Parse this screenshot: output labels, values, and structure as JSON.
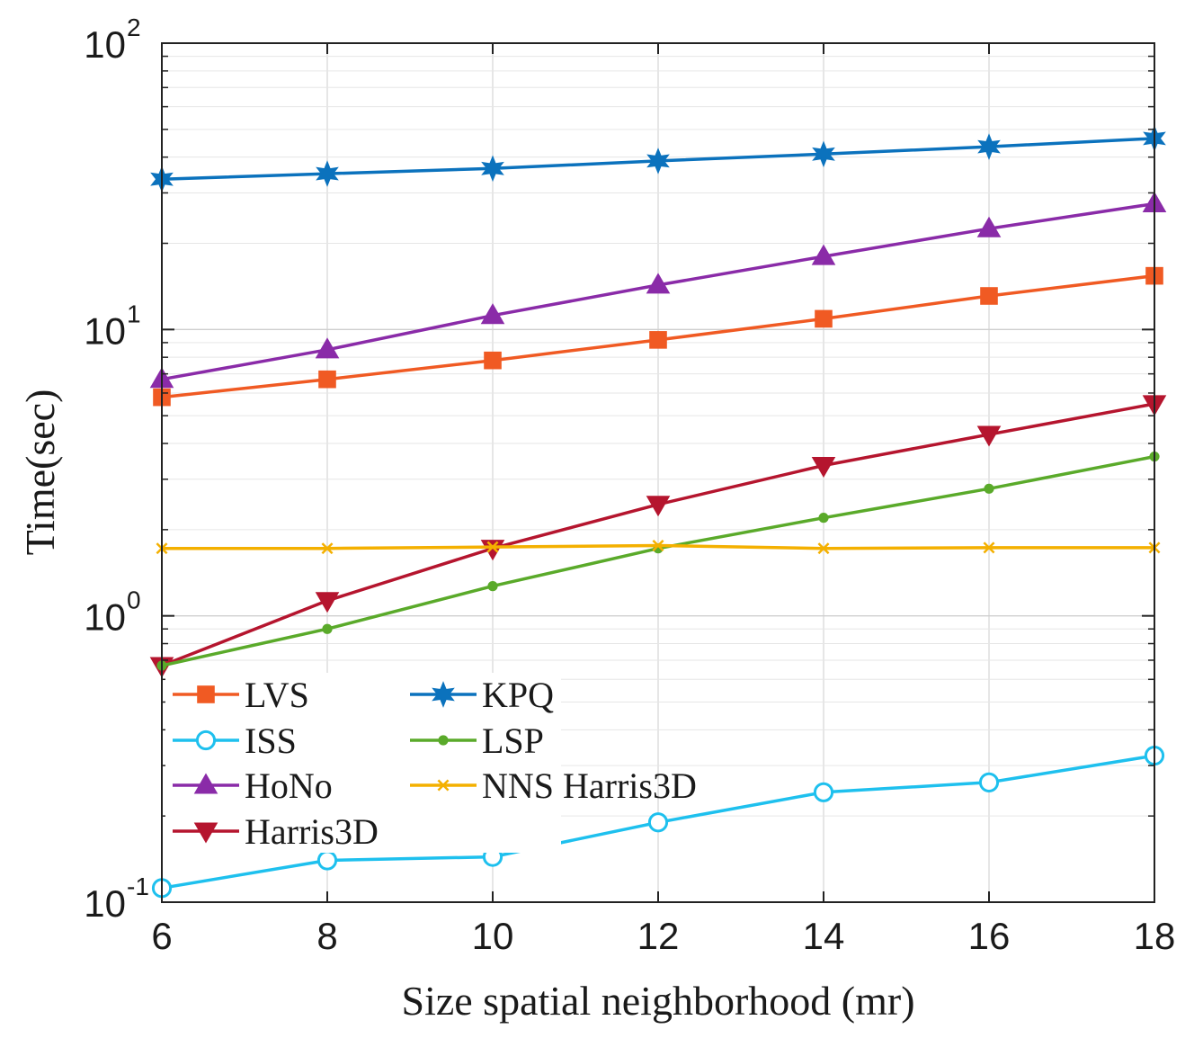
{
  "chart_data": {
    "type": "line",
    "xlabel": "Size spatial neighborhood (mr)",
    "ylabel": "Time(sec)",
    "yscale": "log",
    "xlim": [
      6,
      18
    ],
    "ylim": [
      0.1,
      100
    ],
    "grid": true,
    "legend_position": "bottom-left",
    "x_ticks": [
      "6",
      "8",
      "10",
      "12",
      "14",
      "16",
      "18"
    ],
    "y_ticks": [
      {
        "value": 0.1,
        "base": "10",
        "exp": "-1"
      },
      {
        "value": 1,
        "base": "10",
        "exp": "0"
      },
      {
        "value": 10,
        "base": "10",
        "exp": "1"
      },
      {
        "value": 100,
        "base": "10",
        "exp": "2"
      }
    ],
    "x": [
      6,
      8,
      10,
      12,
      14,
      16,
      18
    ],
    "series": [
      {
        "name": "LVS",
        "color": "#f05a23",
        "marker": "square",
        "values": [
          5.8,
          6.7,
          7.8,
          9.2,
          10.9,
          13.1,
          15.4
        ]
      },
      {
        "name": "ISS",
        "color": "#1ec0ee",
        "marker": "circle",
        "values": [
          0.112,
          0.14,
          0.144,
          0.19,
          0.242,
          0.262,
          0.325
        ]
      },
      {
        "name": "HoNo",
        "color": "#8a2ba8",
        "marker": "triangle-up",
        "values": [
          6.7,
          8.5,
          11.2,
          14.3,
          18.0,
          22.5,
          27.5
        ]
      },
      {
        "name": "Harris3D",
        "color": "#b5152e",
        "marker": "triangle-down",
        "values": [
          0.67,
          1.13,
          1.72,
          2.45,
          3.35,
          4.3,
          5.5
        ]
      },
      {
        "name": "KPQ",
        "color": "#0b72bd",
        "marker": "star",
        "values": [
          33.5,
          35.0,
          36.5,
          38.8,
          41.0,
          43.5,
          46.5
        ]
      },
      {
        "name": "LSP",
        "color": "#5aaa2a",
        "marker": "dot",
        "values": [
          0.67,
          0.9,
          1.27,
          1.72,
          2.2,
          2.78,
          3.6
        ]
      },
      {
        "name": "NNS Harris3D",
        "color": "#f4b000",
        "marker": "x",
        "values": [
          1.72,
          1.72,
          1.74,
          1.76,
          1.72,
          1.73,
          1.73
        ]
      }
    ]
  }
}
